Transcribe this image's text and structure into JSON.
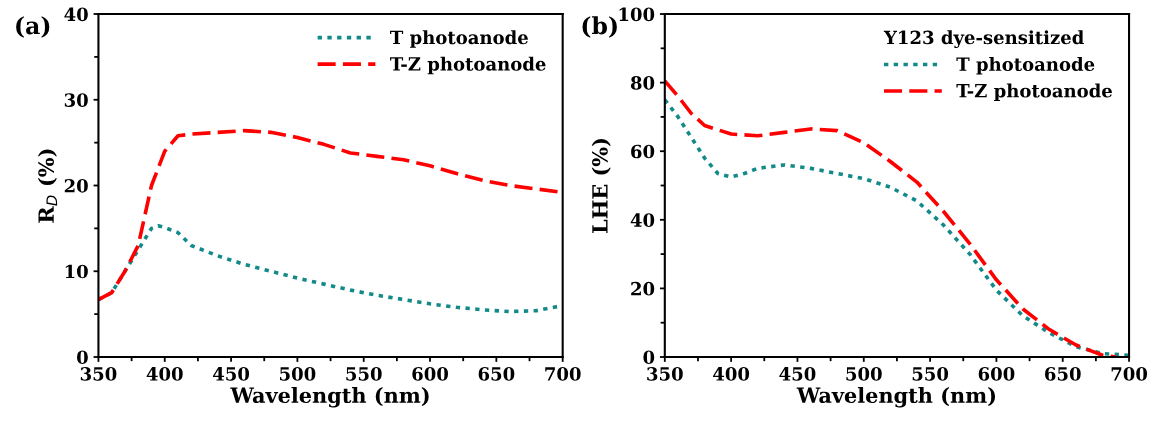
{
  "chart_data": [
    {
      "type": "line",
      "xlabel": "Wavelength (nm)",
      "ylabel": "R$_{D}$ (%)",
      "annotations": [
        "(a)"
      ],
      "legend": "top right",
      "grid": false,
      "marker": "none",
      "xlim": [
        350,
        700
      ],
      "ylim": [
        0,
        40
      ],
      "xticks": [
        350,
        400,
        450,
        500,
        550,
        600,
        650,
        700
      ],
      "yticks": [
        0,
        10,
        20,
        30,
        40
      ],
      "series": [
        {
          "name": "T photoanode",
          "color": "#138a8a",
          "line_style": "dotted",
          "x": [
            350,
            360,
            370,
            380,
            390,
            395,
            400,
            410,
            420,
            440,
            460,
            480,
            500,
            520,
            540,
            560,
            580,
            600,
            620,
            640,
            660,
            680,
            700
          ],
          "values": [
            6.7,
            7.5,
            10,
            12.5,
            15,
            15.3,
            15.1,
            14.5,
            13,
            11.8,
            10.8,
            10,
            9.2,
            8.5,
            7.8,
            7.2,
            6.7,
            6.2,
            5.8,
            5.5,
            5.3,
            5.4,
            6.0
          ]
        },
        {
          "name": "T-Z photoanode",
          "color": "#ff0000",
          "line_style": "dashed",
          "x": [
            350,
            360,
            370,
            380,
            390,
            400,
            410,
            420,
            440,
            460,
            480,
            500,
            520,
            540,
            560,
            580,
            600,
            620,
            640,
            660,
            680,
            700
          ],
          "values": [
            6.7,
            7.5,
            10,
            13,
            20,
            24,
            25.8,
            26,
            26.2,
            26.4,
            26.2,
            25.6,
            24.8,
            23.8,
            23.4,
            23,
            22.3,
            21.4,
            20.6,
            20,
            19.6,
            19.2
          ]
        }
      ]
    },
    {
      "type": "line",
      "xlabel": "Wavelength (nm)",
      "ylabel": "LHE (%)",
      "legend_title": "Y123 dye-sensitized",
      "annotations": [
        "(b)"
      ],
      "legend": "top right",
      "grid": false,
      "marker": "none",
      "xlim": [
        350,
        700
      ],
      "ylim": [
        0,
        100
      ],
      "xticks": [
        350,
        400,
        450,
        500,
        550,
        600,
        650,
        700
      ],
      "yticks": [
        0,
        20,
        40,
        60,
        80,
        100
      ],
      "series": [
        {
          "name": "T photoanode",
          "color": "#138a8a",
          "line_style": "dotted",
          "x": [
            350,
            360,
            370,
            380,
            390,
            400,
            410,
            420,
            440,
            460,
            480,
            500,
            520,
            540,
            550,
            560,
            580,
            600,
            620,
            640,
            660,
            680,
            700
          ],
          "values": [
            75,
            70,
            64,
            58,
            53.5,
            52.5,
            53.5,
            55,
            56,
            55,
            53.5,
            52,
            49.5,
            45.5,
            42,
            38.5,
            30,
            19.5,
            12,
            7,
            3,
            1,
            0.5
          ]
        },
        {
          "name": "T-Z photoanode",
          "color": "#ff0000",
          "line_style": "dashed",
          "x": [
            350,
            360,
            370,
            380,
            400,
            420,
            440,
            460,
            480,
            500,
            520,
            540,
            560,
            580,
            600,
            620,
            640,
            660,
            680,
            690
          ],
          "values": [
            80.5,
            76,
            71,
            67.5,
            65,
            64.5,
            65.5,
            66.5,
            66,
            62.5,
            57,
            51,
            42.5,
            33,
            22.5,
            14,
            8,
            3.5,
            0.5,
            0
          ]
        }
      ]
    }
  ]
}
